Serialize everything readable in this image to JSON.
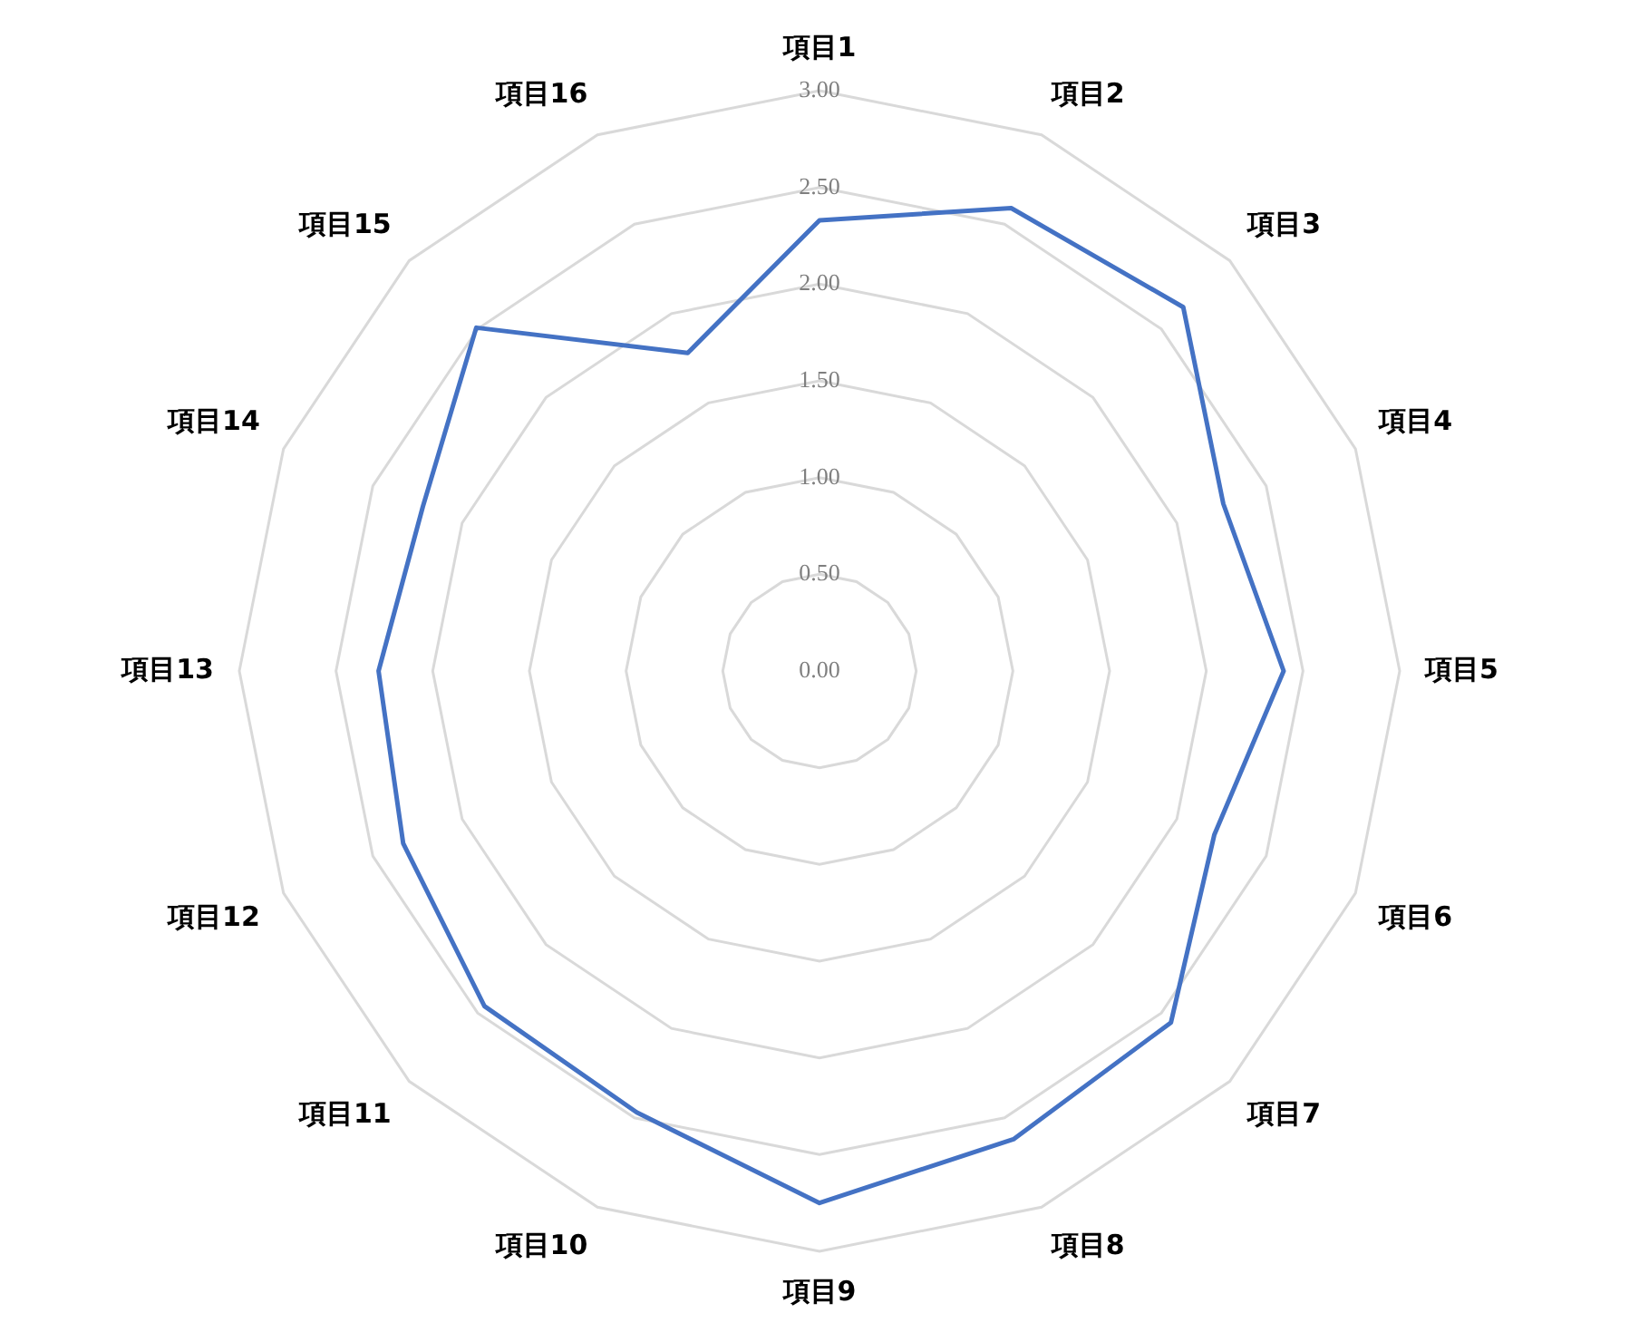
{
  "chart_data": {
    "type": "radar",
    "categories": [
      "項目1",
      "項目2",
      "項目3",
      "項目4",
      "項目5",
      "項目6",
      "項目7",
      "項目8",
      "項目9",
      "項目10",
      "項目11",
      "項目12",
      "項目13",
      "項目14",
      "項目15",
      "項目16"
    ],
    "series": [
      {
        "color": "#4472c4",
        "values": [
          2.33,
          2.59,
          2.66,
          2.26,
          2.4,
          2.21,
          2.57,
          2.62,
          2.75,
          2.47,
          2.45,
          2.33,
          2.28,
          2.22,
          2.51,
          1.78
        ]
      }
    ],
    "ylim": [
      0,
      3
    ],
    "yticks": [
      {
        "value": 0,
        "label": "0.00"
      },
      {
        "value": 0.5,
        "label": "0.50"
      },
      {
        "value": 1,
        "label": "1.00"
      },
      {
        "value": 1.5,
        "label": "1.50"
      },
      {
        "value": 2,
        "label": "2.00"
      },
      {
        "value": 2.5,
        "label": "2.50"
      },
      {
        "value": 3,
        "label": "3.00"
      }
    ],
    "grid": true,
    "legend": false,
    "marker": "none",
    "line_style": "solid"
  }
}
